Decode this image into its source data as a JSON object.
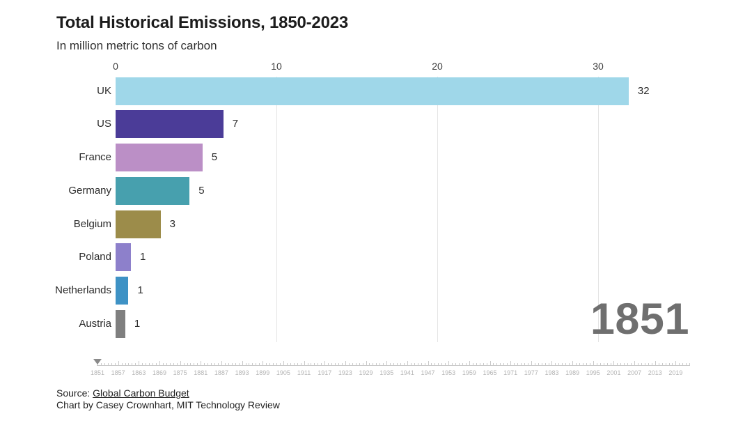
{
  "header": {
    "title": "Total Historical Emissions, 1850-2023",
    "subtitle": "In million metric tons of carbon"
  },
  "chart_data": {
    "type": "bar",
    "orientation": "horizontal",
    "title": "Total Historical Emissions, 1850-2023",
    "subtitle": "In million metric tons of carbon",
    "categories": [
      "UK",
      "US",
      "France",
      "Germany",
      "Belgium",
      "Poland",
      "Netherlands",
      "Austria"
    ],
    "values": [
      32,
      7,
      5,
      5,
      3,
      1,
      1,
      1
    ],
    "values_precise": [
      31.9,
      6.7,
      5.4,
      4.6,
      2.8,
      0.95,
      0.8,
      0.6
    ],
    "colors": [
      "#9fd7e9",
      "#4b3c98",
      "#bb8fc6",
      "#47a0ae",
      "#9c8c4a",
      "#8d80cb",
      "#3e92c5",
      "#7f7f7f"
    ],
    "x_ticks": [
      0,
      10,
      20,
      30
    ],
    "xlim": [
      0,
      36
    ],
    "grid": "vertical-light-gray",
    "legend": "none",
    "value_labels_shown": true,
    "year_display": "1851"
  },
  "timeline": {
    "start_year": 1851,
    "end_year": 2023,
    "current_year": 1851,
    "label_step": 6,
    "labels": [
      "1851",
      "1857",
      "1863",
      "1869",
      "1875",
      "1881",
      "1887",
      "1893",
      "1899",
      "1905",
      "1911",
      "1917",
      "1923",
      "1929",
      "1935",
      "1941",
      "1947",
      "1953",
      "1959",
      "1965",
      "1971",
      "1977",
      "1983",
      "1989",
      "1995",
      "2001",
      "2007",
      "2013",
      "2019"
    ]
  },
  "footer": {
    "source_prefix": "Source: ",
    "source_link": "Global Carbon Budget",
    "credit": "Chart by Casey Crownhart, MIT Technology Review"
  },
  "colors": {
    "background": "#ffffff",
    "title_text": "#1c1c1c",
    "body_text": "#2b2b2b",
    "year_display_text": "#6f6f6f",
    "gridline": "#e4e4e4",
    "timeline_track": "#c9c9c9",
    "timeline_label": "#b4b4b4",
    "timeline_marker": "#8a8a8a"
  }
}
